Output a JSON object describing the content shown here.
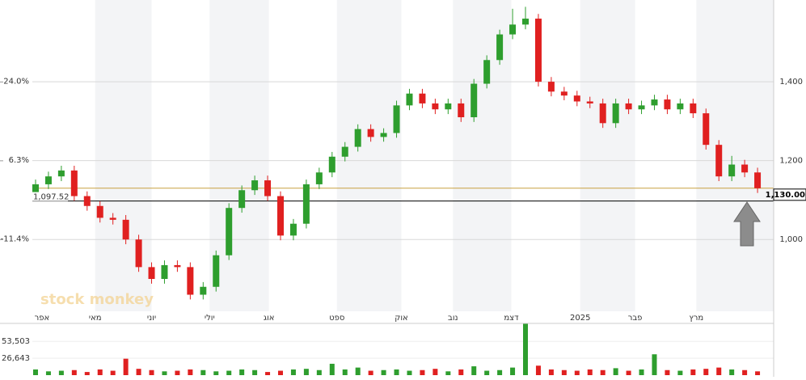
{
  "chart_data": {
    "type": "candlestick",
    "watermark": "stock monkey",
    "x": [
      1,
      5,
      9,
      13,
      17,
      21,
      25,
      29,
      33,
      37,
      41,
      45,
      49,
      53,
      57,
      61,
      65,
      69,
      73,
      77,
      81,
      85,
      89,
      93,
      97,
      101,
      105,
      109,
      113,
      117,
      121,
      125,
      129,
      133,
      137,
      141,
      145,
      149,
      153,
      157,
      161,
      165,
      169,
      173,
      177,
      181,
      185,
      189,
      193,
      197,
      201,
      205,
      209,
      213,
      217,
      221,
      225
    ],
    "open": [
      1120,
      1140,
      1160,
      1175,
      1110,
      1085,
      1055,
      1050,
      1000,
      930,
      900,
      935,
      930,
      860,
      880,
      960,
      1080,
      1125,
      1150,
      1110,
      1010,
      1040,
      1140,
      1170,
      1210,
      1235,
      1280,
      1260,
      1270,
      1340,
      1370,
      1345,
      1330,
      1345,
      1310,
      1395,
      1455,
      1520,
      1545,
      1560,
      1400,
      1375,
      1365,
      1350,
      1345,
      1295,
      1345,
      1330,
      1340,
      1355,
      1330,
      1345,
      1320,
      1240,
      1160,
      1190,
      1170
    ],
    "high": [
      1152,
      1172,
      1187,
      1187,
      1122,
      1097,
      1067,
      1062,
      1012,
      942,
      947,
      947,
      942,
      892,
      972,
      1092,
      1137,
      1162,
      1162,
      1122,
      1052,
      1152,
      1182,
      1222,
      1247,
      1292,
      1292,
      1282,
      1352,
      1382,
      1382,
      1357,
      1357,
      1357,
      1407,
      1467,
      1532,
      1585,
      1590,
      1572,
      1412,
      1387,
      1377,
      1362,
      1357,
      1357,
      1357,
      1352,
      1367,
      1367,
      1357,
      1357,
      1332,
      1252,
      1212,
      1202,
      1182
    ],
    "low": [
      1108,
      1128,
      1148,
      1098,
      1073,
      1043,
      1038,
      988,
      918,
      888,
      888,
      918,
      848,
      848,
      868,
      948,
      1068,
      1113,
      1098,
      998,
      998,
      1028,
      1128,
      1158,
      1198,
      1223,
      1248,
      1248,
      1258,
      1328,
      1333,
      1318,
      1318,
      1298,
      1298,
      1383,
      1443,
      1508,
      1533,
      1388,
      1363,
      1353,
      1338,
      1333,
      1283,
      1283,
      1318,
      1318,
      1328,
      1318,
      1318,
      1308,
      1228,
      1148,
      1148,
      1158,
      1118
    ],
    "close": [
      1140,
      1160,
      1175,
      1110,
      1085,
      1055,
      1050,
      1000,
      930,
      900,
      935,
      930,
      860,
      880,
      960,
      1080,
      1125,
      1150,
      1110,
      1010,
      1040,
      1140,
      1170,
      1210,
      1235,
      1280,
      1260,
      1270,
      1340,
      1370,
      1345,
      1330,
      1345,
      1310,
      1395,
      1455,
      1520,
      1545,
      1560,
      1400,
      1375,
      1365,
      1350,
      1345,
      1295,
      1345,
      1330,
      1340,
      1355,
      1330,
      1345,
      1320,
      1240,
      1160,
      1190,
      1170,
      1130
    ],
    "volume": [
      9000,
      6000,
      7000,
      8000,
      5000,
      9000,
      7000,
      26000,
      10000,
      8000,
      6000,
      7000,
      9000,
      8000,
      6000,
      7000,
      9000,
      8000,
      5000,
      7000,
      9000,
      10000,
      8000,
      18000,
      9000,
      12000,
      7000,
      8000,
      9000,
      7000,
      8000,
      10000,
      6000,
      9000,
      14000,
      7000,
      8000,
      12000,
      82000,
      15000,
      9000,
      8000,
      7000,
      9000,
      8000,
      11000,
      7000,
      9000,
      33000,
      8000,
      7000,
      9000,
      10000,
      12000,
      9000,
      8000,
      6000
    ],
    "up_color": "#2e9e2e",
    "down_color": "#e02020",
    "xlim": [
      0,
      230
    ],
    "xticks": [
      {
        "value": 3,
        "label": "אפר"
      },
      {
        "value": 19.5,
        "label": "מאי"
      },
      {
        "value": 37,
        "label": "יוני"
      },
      {
        "value": 55,
        "label": "יולי"
      },
      {
        "value": 73.4,
        "label": "אוג"
      },
      {
        "value": 94.5,
        "label": "ספט"
      },
      {
        "value": 114.5,
        "label": "אוק"
      },
      {
        "value": 130.5,
        "label": "נוב"
      },
      {
        "value": 148.6,
        "label": "דצמ"
      },
      {
        "value": 170,
        "label": "2025"
      },
      {
        "value": 187,
        "label": "פבר"
      },
      {
        "value": 206,
        "label": "מרץ"
      }
    ],
    "ylim": [
      818,
      1597
    ],
    "yticks": [
      {
        "value": 1000,
        "label": "1,000"
      },
      {
        "value": 1200,
        "label": "1,200"
      },
      {
        "value": 1400,
        "label": "1,400"
      }
    ],
    "y2lim": [
      -27.5,
      41.5
    ],
    "y2ticks": [
      {
        "value": -11.4,
        "label": "-11.4%"
      },
      {
        "value": 6.3,
        "label": "6.3%"
      },
      {
        "value": 24.0,
        "label": "24.0%"
      }
    ],
    "volume_lim": [
      0,
      81900
    ],
    "volume_ticks": [
      {
        "value": 26643,
        "label": "26,643"
      },
      {
        "value": 53503,
        "label": "53,503"
      }
    ],
    "last_price": {
      "value": 1130,
      "label": "1,130.00",
      "color": "#c8a040"
    },
    "reference_line": {
      "value": 1097.52,
      "label": "1,097.52",
      "color": "#000000"
    },
    "grid": true
  }
}
